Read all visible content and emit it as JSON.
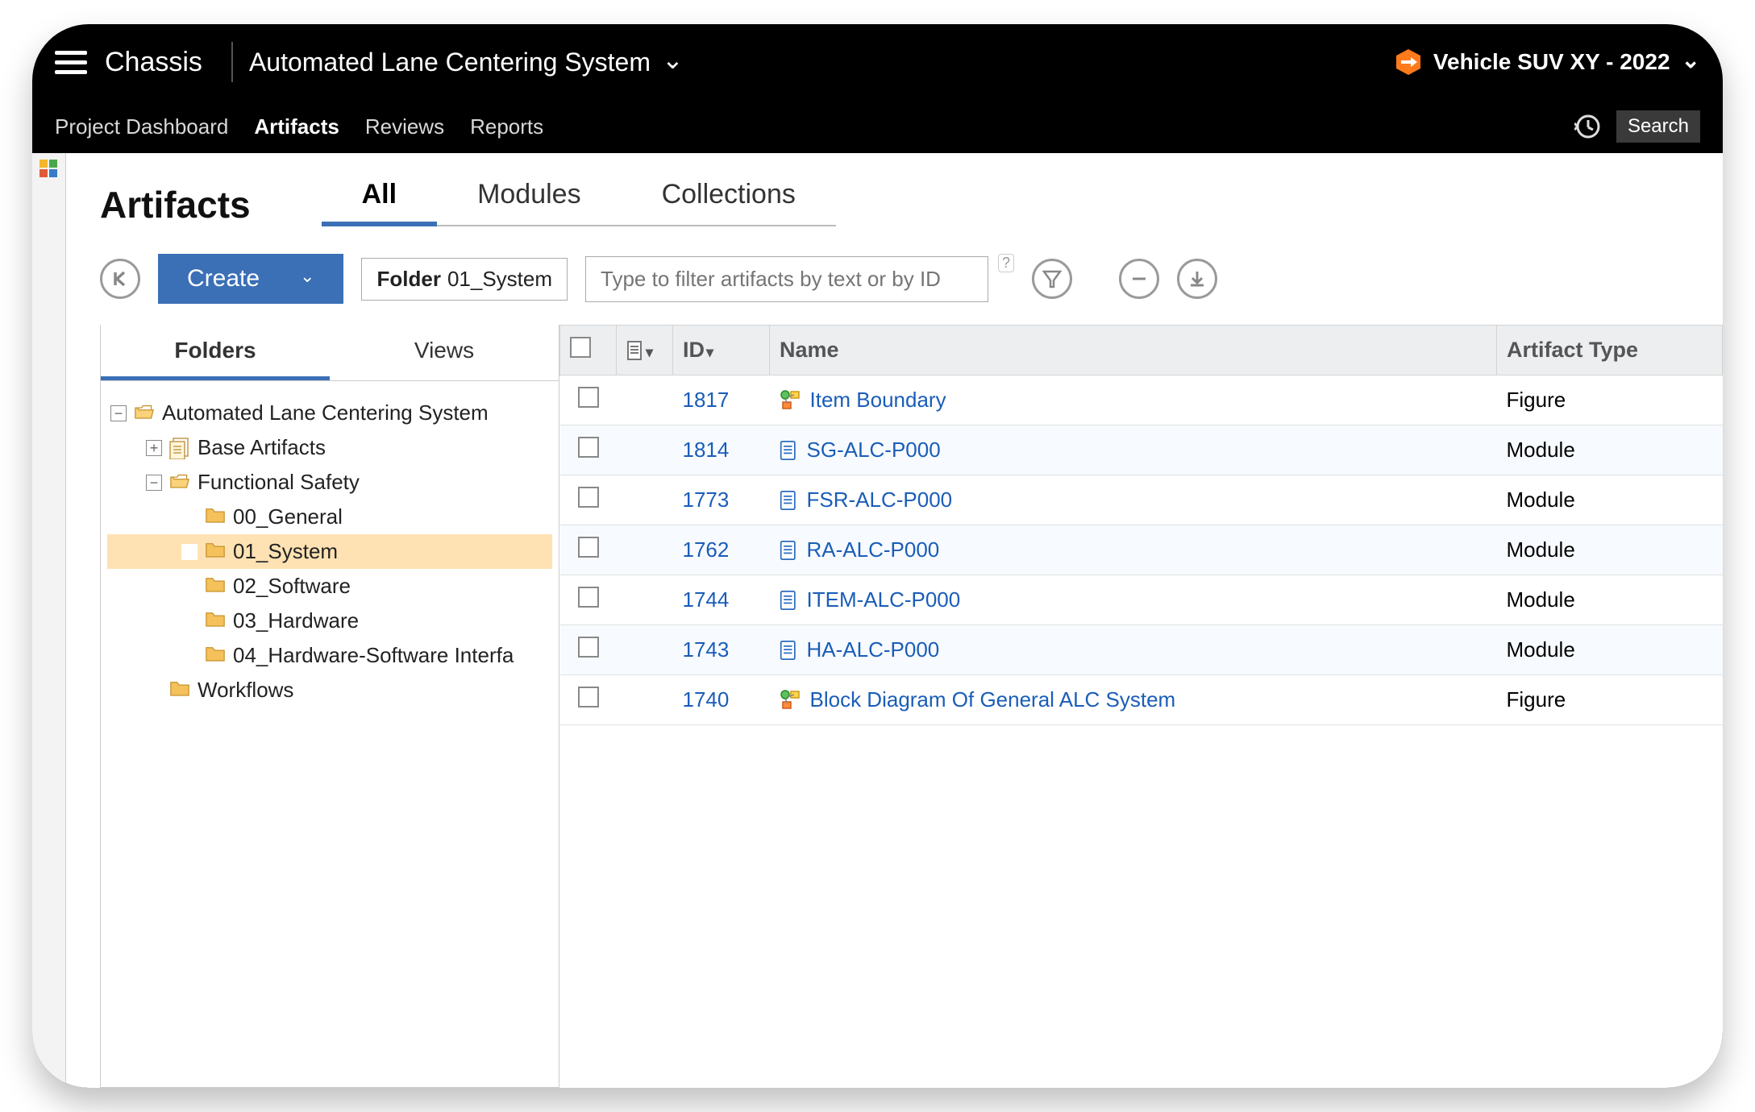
{
  "colors": {
    "frame_bg": "#000000",
    "accent": "#3b6fb6",
    "link": "#1a5db8",
    "selected_row": "#ffe2b3",
    "hex_icon": "#ff7a1a",
    "table_header_bg": "#eceef0",
    "body_bg": "#ffffff"
  },
  "header": {
    "project": "Chassis",
    "stream": "Automated Lane Centering System",
    "context": "Vehicle SUV XY - 2022"
  },
  "nav": {
    "items": [
      {
        "label": "Project Dashboard",
        "active": false
      },
      {
        "label": "Artifacts",
        "active": true
      },
      {
        "label": "Reviews",
        "active": false
      },
      {
        "label": "Reports",
        "active": false
      }
    ],
    "search_label": "Search"
  },
  "page": {
    "title": "Artifacts",
    "tabs": [
      {
        "label": "All",
        "active": true
      },
      {
        "label": "Modules",
        "active": false
      },
      {
        "label": "Collections",
        "active": false
      }
    ]
  },
  "toolbar": {
    "create_label": "Create",
    "folder_label": "Folder",
    "folder_value": "01_System",
    "filter_placeholder": "Type to filter artifacts by text or by ID"
  },
  "folder_panel": {
    "tabs": [
      {
        "label": "Folders",
        "active": true
      },
      {
        "label": "Views",
        "active": false
      }
    ],
    "tree": [
      {
        "indent": 0,
        "twisty": "-",
        "icon": "folder-open",
        "label": "Automated Lane Centering System",
        "selected": false
      },
      {
        "indent": 1,
        "twisty": "+",
        "icon": "doc-stack",
        "label": "Base Artifacts",
        "selected": false
      },
      {
        "indent": 1,
        "twisty": "-",
        "icon": "folder-open",
        "label": "Functional Safety",
        "selected": false
      },
      {
        "indent": 2,
        "twisty": "",
        "icon": "folder",
        "label": "00_General",
        "selected": false
      },
      {
        "indent": 2,
        "twisty": "",
        "icon": "folder",
        "label": "01_System",
        "selected": true
      },
      {
        "indent": 2,
        "twisty": "",
        "icon": "folder",
        "label": "02_Software",
        "selected": false
      },
      {
        "indent": 2,
        "twisty": "",
        "icon": "folder",
        "label": "03_Hardware",
        "selected": false
      },
      {
        "indent": 2,
        "twisty": "",
        "icon": "folder",
        "label": "04_Hardware-Software Interfa",
        "selected": false
      },
      {
        "indent": 1,
        "twisty": "",
        "icon": "folder",
        "label": "Workflows",
        "selected": false
      }
    ]
  },
  "table": {
    "columns": {
      "id": "ID",
      "name": "Name",
      "type": "Artifact Type"
    },
    "rows": [
      {
        "id": "1817",
        "icon": "figure",
        "name": "Item Boundary",
        "type": "Figure"
      },
      {
        "id": "1814",
        "icon": "module",
        "name": "SG-ALC-P000",
        "type": "Module"
      },
      {
        "id": "1773",
        "icon": "module",
        "name": "FSR-ALC-P000",
        "type": "Module"
      },
      {
        "id": "1762",
        "icon": "module",
        "name": "RA-ALC-P000",
        "type": "Module"
      },
      {
        "id": "1744",
        "icon": "module",
        "name": "ITEM-ALC-P000",
        "type": "Module"
      },
      {
        "id": "1743",
        "icon": "module",
        "name": "HA-ALC-P000",
        "type": "Module"
      },
      {
        "id": "1740",
        "icon": "figure",
        "name": "Block Diagram Of General ALC System",
        "type": "Figure"
      }
    ]
  }
}
